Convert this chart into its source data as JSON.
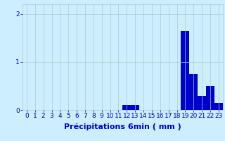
{
  "title": "",
  "xlabel": "Précipitations 6min ( mm )",
  "ylabel": "",
  "background_color": "#cceeff",
  "bar_color": "#0000cc",
  "grid_color": "#aacccc",
  "ylim": [
    0,
    2.2
  ],
  "yticks": [
    0,
    1,
    2
  ],
  "num_bars": 24,
  "values": [
    0,
    0,
    0,
    0,
    0,
    0,
    0,
    0,
    0,
    0,
    0,
    0,
    0.1,
    0.1,
    0,
    0,
    0,
    0,
    0,
    1.65,
    0.75,
    0.3,
    0.5,
    0.15
  ],
  "xlabel_fontsize": 8,
  "tick_fontsize": 6.5
}
